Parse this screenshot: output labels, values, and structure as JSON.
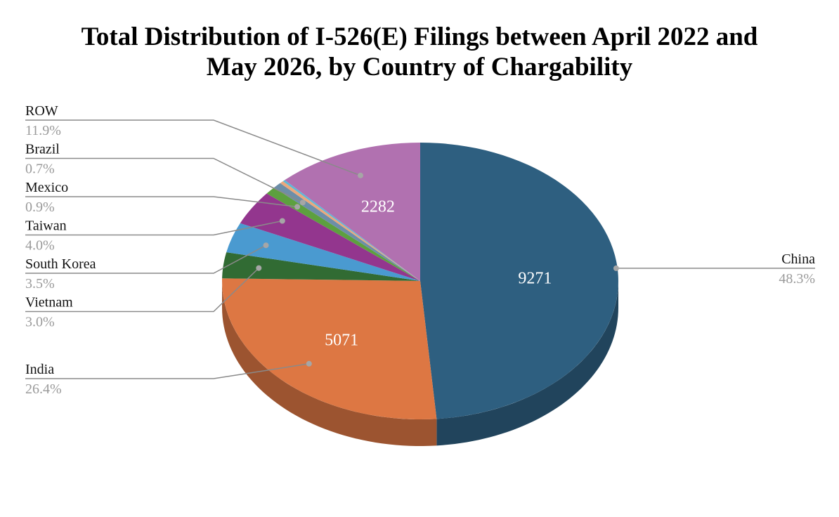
{
  "chart_data": {
    "type": "pie",
    "title_lines": [
      "Total Distribution of I-526(E) Filings between April 2022 and",
      "May 2026, by Country of Chargability"
    ],
    "slices": [
      {
        "label": "China",
        "value": 9271,
        "percent_label": "48.3%",
        "value_label": "9271",
        "color": "#2e5f80",
        "side_color": "#21445c",
        "label_side": "right"
      },
      {
        "label": "India",
        "value": 5071,
        "percent_label": "26.4%",
        "value_label": "5071",
        "color": "#dd7743",
        "side_color": "#9c5430",
        "label_side": "left"
      },
      {
        "label": "Vietnam",
        "value": 576,
        "percent_label": "3.0%",
        "value_label": "",
        "color": "#316b33",
        "side_color": "#224a24",
        "label_side": "left"
      },
      {
        "label": "South Korea",
        "value": 672,
        "percent_label": "3.5%",
        "value_label": "",
        "color": "#4a9ad0",
        "side_color": "#346c92",
        "label_side": "left"
      },
      {
        "label": "Taiwan",
        "value": 768,
        "percent_label": "4.0%",
        "value_label": "",
        "color": "#93368e",
        "side_color": "#672663",
        "label_side": "left"
      },
      {
        "label": "Mexico",
        "value": 173,
        "percent_label": "0.9%",
        "value_label": "",
        "color": "#5da03f",
        "side_color": "#41702c",
        "label_side": "left"
      },
      {
        "label": "Brazil",
        "value": 134,
        "percent_label": "0.7%",
        "value_label": "",
        "color": "#6d8ea8",
        "side_color": "#4c6376",
        "label_side": "left"
      },
      {
        "label": "",
        "value": 60,
        "percent_label": "",
        "value_label": "",
        "color": "#eba87c",
        "side_color": "#a57657",
        "label_side": "none"
      },
      {
        "label": "",
        "value": 38,
        "percent_label": "",
        "value_label": "",
        "color": "#5db8d8",
        "side_color": "#418197",
        "label_side": "none"
      },
      {
        "label": "ROW",
        "value": 2282,
        "percent_label": "11.9%",
        "value_label": "2282",
        "color": "#b171b0",
        "side_color": "#7c4f7b",
        "label_side": "left"
      }
    ],
    "legend": "none"
  }
}
